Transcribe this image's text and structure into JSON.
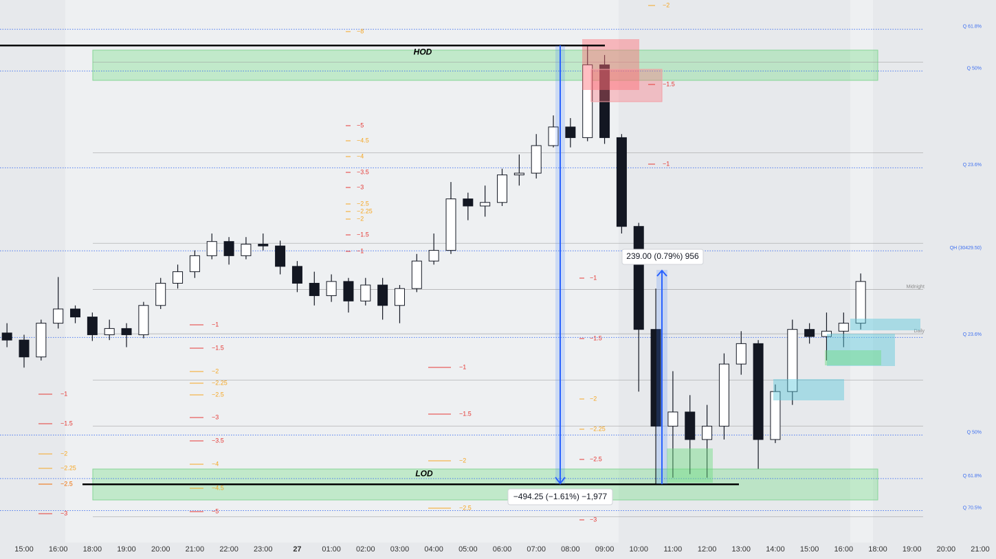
{
  "chart_data": {
    "type": "candlestick",
    "x": [
      -0.5,
      0,
      0.5,
      1,
      1.5,
      2,
      2.5,
      3,
      3.5,
      4,
      4.5,
      5,
      5.5,
      6,
      6.5,
      7,
      7.5,
      8,
      8.5,
      9,
      9.5,
      10,
      10.5,
      11,
      11.5,
      12,
      12.5,
      13,
      13.5,
      14,
      14.5,
      15,
      15.5,
      16,
      16.5,
      17,
      17.5,
      18,
      18.5,
      19,
      19.5,
      20,
      20.5,
      21,
      21.5,
      22,
      22.5,
      23,
      23.5,
      24,
      24.5
    ],
    "open": [
      30337,
      30329,
      30310,
      30348,
      30364,
      30355,
      30335,
      30342,
      30335,
      30368,
      30393,
      30406,
      30424,
      30440,
      30424,
      30437,
      30435,
      30412,
      30393,
      30379,
      30395,
      30373,
      30391,
      30368,
      30387,
      30418,
      30430,
      30488,
      30480,
      30484,
      30515,
      30517,
      30548,
      30569,
      30557,
      30639,
      30557,
      30457,
      30341,
      30232,
      30248,
      30217,
      30232,
      30302,
      30325,
      30217,
      30271,
      30341,
      30333,
      30339,
      30348
    ],
    "high": [
      30348,
      30335,
      30352,
      30400,
      30368,
      30360,
      30352,
      30348,
      30372,
      30399,
      30414,
      30430,
      30449,
      30445,
      30445,
      30449,
      30441,
      30418,
      30406,
      30403,
      30399,
      30399,
      30399,
      30391,
      30426,
      30449,
      30507,
      30495,
      30503,
      30522,
      30538,
      30561,
      30582,
      30579,
      30660.75,
      30650,
      30561,
      30461,
      30387,
      30294,
      30267,
      30256,
      30314,
      30339,
      30329,
      30279,
      30352,
      30348,
      30360,
      30360,
      30404
    ],
    "low": [
      30321,
      30298,
      30306,
      30342,
      30348,
      30328,
      30329,
      30321,
      30331,
      30364,
      30387,
      30399,
      30420,
      30414,
      30420,
      30430,
      30403,
      30383,
      30368,
      30372,
      30360,
      30368,
      30352,
      30348,
      30383,
      30414,
      30426,
      30464,
      30468,
      30480,
      30503,
      30511,
      30546,
      30546,
      30553,
      30550,
      30449,
      30271,
      30166.5,
      30174,
      30178,
      30174,
      30217,
      30290,
      30184,
      30213,
      30256,
      30325,
      30306,
      30321,
      30341
    ],
    "close": [
      30329,
      30310,
      30348,
      30364,
      30355,
      30335,
      30342,
      30335,
      30368,
      30393,
      30406,
      30424,
      30440,
      30424,
      30437,
      30435,
      30412,
      30393,
      30379,
      30395,
      30373,
      30391,
      30368,
      30387,
      30418,
      30430,
      30488,
      30480,
      30484,
      30515,
      30517,
      30548,
      30569,
      30557,
      30639,
      30557,
      30457,
      30341,
      30232,
      30248,
      30217,
      30232,
      30302,
      30325,
      30217,
      30271,
      30341,
      30333,
      30339,
      30348,
      30395
    ],
    "up_color": "#ffffff",
    "down_color": "#131722",
    "xlim": [
      -0.7,
      28.46
    ],
    "ylim": [
      30101,
      30712
    ],
    "xticks": [
      {
        "value": 0,
        "label": "15:00"
      },
      {
        "value": 1,
        "label": "16:00"
      },
      {
        "value": 2,
        "label": "18:00"
      },
      {
        "value": 3,
        "label": "19:00"
      },
      {
        "value": 4,
        "label": "20:00"
      },
      {
        "value": 5,
        "label": "21:00"
      },
      {
        "value": 6,
        "label": "22:00"
      },
      {
        "value": 7,
        "label": "23:00"
      },
      {
        "value": 8,
        "label": "27"
      },
      {
        "value": 9,
        "label": "01:00"
      },
      {
        "value": 10,
        "label": "02:00"
      },
      {
        "value": 11,
        "label": "03:00"
      },
      {
        "value": 12,
        "label": "04:00"
      },
      {
        "value": 13,
        "label": "05:00"
      },
      {
        "value": 14,
        "label": "06:00"
      },
      {
        "value": 15,
        "label": "07:00"
      },
      {
        "value": 16,
        "label": "08:00"
      },
      {
        "value": 17,
        "label": "09:00"
      },
      {
        "value": 18,
        "label": "10:00"
      },
      {
        "value": 19,
        "label": "11:00"
      },
      {
        "value": 20,
        "label": "12:00"
      },
      {
        "value": 21,
        "label": "13:00"
      },
      {
        "value": 22,
        "label": "14:00"
      },
      {
        "value": 23,
        "label": "15:00"
      },
      {
        "value": 24,
        "label": "16:00"
      },
      {
        "value": 25,
        "label": "18:00"
      },
      {
        "value": 26,
        "label": "19:00"
      },
      {
        "value": 27,
        "label": "20:00"
      },
      {
        "value": 28,
        "label": "21:00"
      }
    ],
    "levels": [
      {
        "price": 30679,
        "label": "Q 61.8%",
        "style": "dotted",
        "color": "#3d6ff0"
      },
      {
        "price": 30632,
        "label": "Q 50%",
        "style": "dotted",
        "color": "#3d6ff0"
      },
      {
        "price": 30523,
        "label": "Q 23.6%",
        "style": "dotted",
        "color": "#3d6ff0"
      },
      {
        "price": 30429.5,
        "label": "QH (30429.50)",
        "style": "dotted",
        "color": "#3d6ff0"
      },
      {
        "price": 30332,
        "label": "Q 23.6%",
        "style": "dotted",
        "color": "#3d6ff0"
      },
      {
        "price": 30222,
        "label": "Q 50%",
        "style": "dotted",
        "color": "#3d6ff0"
      },
      {
        "price": 30173,
        "label": "Q 61.8%",
        "style": "dotted",
        "color": "#3d6ff0"
      },
      {
        "price": 30137,
        "label": "Q 70.5%",
        "style": "dotted",
        "color": "#3d6ff0"
      },
      {
        "price": 30386,
        "label": "Midnight",
        "style": "solid",
        "color": "#8a8a8a"
      },
      {
        "price": 30336,
        "label": "Daily",
        "style": "solid",
        "color": "#8a8a8a"
      },
      {
        "price": 30642,
        "style": "solid",
        "color": "#9a9a9a"
      },
      {
        "price": 30540,
        "style": "solid",
        "color": "#9a9a9a"
      },
      {
        "price": 30438,
        "style": "solid",
        "color": "#9a9a9a"
      },
      {
        "price": 30284,
        "style": "solid",
        "color": "#9a9a9a"
      },
      {
        "price": 30232,
        "style": "solid",
        "color": "#9a9a9a"
      },
      {
        "price": 30130,
        "style": "solid",
        "color": "#9a9a9a"
      }
    ],
    "hod": {
      "label": "HOD",
      "price": 30660.75
    },
    "lod": {
      "label": "LOD",
      "price": 30166.5
    },
    "measures": [
      {
        "label": "−494.25 (−1.61%) −1,977"
      },
      {
        "label": "239.00 (0.79%) 956"
      }
    ],
    "markers": [
      {
        "items": [
          {
            "label": "−1",
            "color": "#e53935"
          },
          {
            "label": "−1.5",
            "color": "#e53935"
          },
          {
            "label": "−2",
            "color": "#f5a623"
          },
          {
            "label": "−2.25",
            "color": "#f5a623"
          },
          {
            "label": "−2.5",
            "color": "#ef6c00"
          },
          {
            "label": "−3",
            "color": "#e53935"
          }
        ]
      },
      {
        "items": [
          {
            "label": "−1",
            "color": "#e53935"
          },
          {
            "label": "−1.5",
            "color": "#e53935"
          },
          {
            "label": "−2",
            "color": "#f5a623"
          },
          {
            "label": "−2.25",
            "color": "#f5a623"
          },
          {
            "label": "−2.5",
            "color": "#f5a623"
          },
          {
            "label": "−3",
            "color": "#e53935"
          },
          {
            "label": "−3.5",
            "color": "#e53935"
          },
          {
            "label": "−4",
            "color": "#f5a623"
          },
          {
            "label": "−4.5",
            "color": "#f5a623"
          },
          {
            "label": "−5",
            "color": "#e53935"
          }
        ]
      },
      {
        "items": [
          {
            "label": "−8",
            "color": "#f5a623"
          },
          {
            "label": "−5",
            "color": "#e53935"
          },
          {
            "label": "−4.5",
            "color": "#f5a623"
          },
          {
            "label": "−4",
            "color": "#f5a623"
          },
          {
            "label": "−3.5",
            "color": "#e53935"
          },
          {
            "label": "−3",
            "color": "#e53935"
          },
          {
            "label": "−2.5",
            "color": "#f5a623"
          },
          {
            "label": "−2.25",
            "color": "#f5a623"
          },
          {
            "label": "−2",
            "color": "#f5a623"
          },
          {
            "label": "−1.5",
            "color": "#e53935"
          },
          {
            "label": "−1",
            "color": "#e53935"
          }
        ]
      },
      {
        "items": [
          {
            "label": "−1",
            "color": "#e53935"
          },
          {
            "label": "−1.5",
            "color": "#e53935"
          },
          {
            "label": "−2",
            "color": "#f5a623"
          },
          {
            "label": "−2.5",
            "color": "#f5a623"
          }
        ]
      },
      {
        "items": [
          {
            "label": "−1",
            "color": "#e53935"
          },
          {
            "label": "−1.5",
            "color": "#e53935"
          },
          {
            "label": "−2",
            "color": "#f5a623"
          },
          {
            "label": "−2.25",
            "color": "#f5a623"
          },
          {
            "label": "−2.5",
            "color": "#e53935"
          },
          {
            "label": "−3",
            "color": "#e53935"
          }
        ]
      },
      {
        "items": [
          {
            "label": "−2",
            "color": "#f5a623"
          },
          {
            "label": "−1.5",
            "color": "#e53935"
          },
          {
            "label": "−1",
            "color": "#e53935"
          }
        ]
      }
    ]
  }
}
